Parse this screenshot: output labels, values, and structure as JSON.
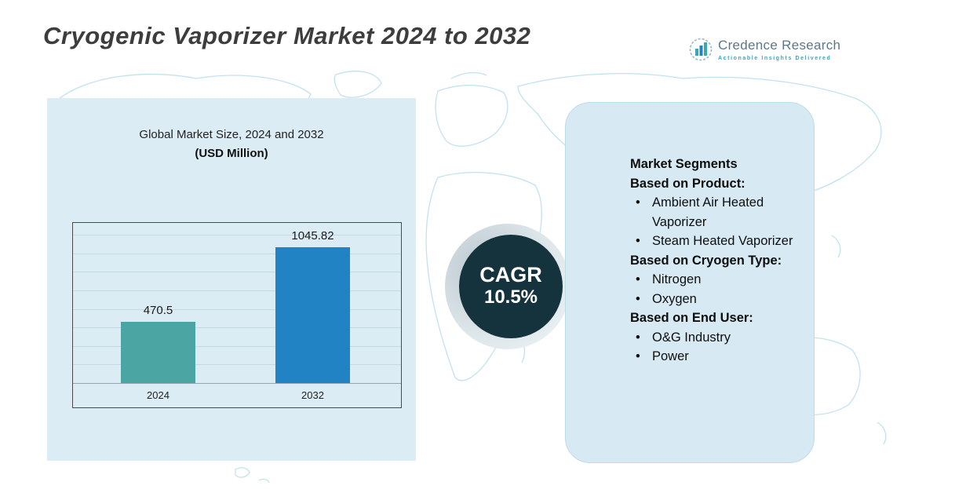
{
  "page": {
    "title": "Cryogenic Vaporizer Market 2024 to 2032"
  },
  "logo": {
    "brand": "Credence Research",
    "tagline": "Actionable Insights Delivered"
  },
  "chart_data": {
    "type": "bar",
    "title": "Global Market Size, 2024 and 2032",
    "subtitle": "(USD Million)",
    "categories": [
      "2024",
      "2032"
    ],
    "values": [
      470.5,
      1045.82
    ],
    "value_labels": [
      "470.5",
      "1045.82"
    ],
    "bar_colors": [
      "#4aa5a3",
      "#2182c4"
    ],
    "ylabel": "",
    "xlabel": "",
    "ylim": [
      0,
      1150
    ],
    "grid": true,
    "legend": "none"
  },
  "cagr": {
    "label": "CAGR",
    "value": "10.5%"
  },
  "segments": {
    "heading": "Market Segments",
    "groups": [
      {
        "title": "Based on Product:",
        "items": [
          "Ambient Air Heated Vaporizer",
          "Steam Heated Vaporizer"
        ]
      },
      {
        "title": "Based on Cryogen Type:",
        "items": [
          "Nitrogen",
          "Oxygen"
        ]
      },
      {
        "title": "Based on End User:",
        "items": [
          "O&G Industry",
          "Power"
        ]
      }
    ]
  },
  "colors": {
    "bar_2024": "#4aa5a3",
    "bar_2032": "#2182c4",
    "cagr_circle": "#14333c",
    "panel_bg": "#dcecf4",
    "map_outline": "#b9dcec",
    "logo_teal": "#3aa7b8"
  }
}
